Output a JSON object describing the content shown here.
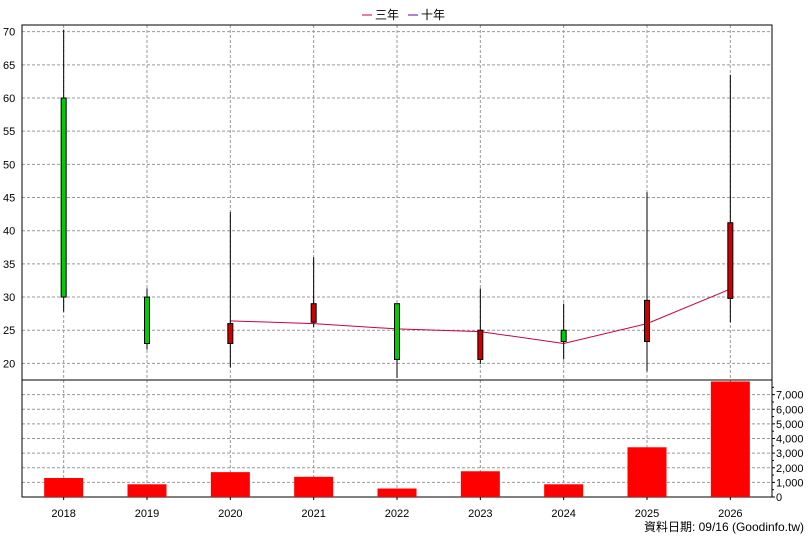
{
  "legend": {
    "items": [
      {
        "label": "三年",
        "color": "#cc0044"
      },
      {
        "label": "十年",
        "color": "#660099"
      }
    ]
  },
  "footer": {
    "source": "資料日期: 09/16 (Goodinfo.tw)"
  },
  "chart_data": [
    {
      "type": "candlestick",
      "categories": [
        "2018",
        "2019",
        "2020",
        "2021",
        "2022",
        "2023",
        "2024",
        "2025",
        "2026"
      ],
      "ylim": [
        17.5,
        71
      ],
      "yticks": [
        20,
        25,
        30,
        35,
        40,
        45,
        50,
        55,
        60,
        65,
        70
      ],
      "grid": true,
      "candles": [
        {
          "open": 30.0,
          "close": 60.0,
          "high": 70.3,
          "low": 27.8,
          "color": "#00cc00"
        },
        {
          "open": 23.0,
          "close": 30.0,
          "high": 31.3,
          "low": 22.1,
          "color": "#00cc00"
        },
        {
          "open": 26.0,
          "close": 23.0,
          "high": 42.8,
          "low": 19.4,
          "color": "#cc0000"
        },
        {
          "open": 29.0,
          "close": 26.2,
          "high": 36.0,
          "low": 25.5,
          "color": "#cc0000"
        },
        {
          "open": 20.6,
          "close": 29.0,
          "high": 29.0,
          "low": 17.8,
          "color": "#00cc00"
        },
        {
          "open": 25.0,
          "close": 20.6,
          "high": 31.3,
          "low": 19.9,
          "color": "#cc0000"
        },
        {
          "open": 23.3,
          "close": 25.0,
          "high": 29.0,
          "low": 20.6,
          "color": "#00cc00"
        },
        {
          "open": 29.5,
          "close": 23.3,
          "high": 45.8,
          "low": 18.8,
          "color": "#cc0000"
        },
        {
          "open": 41.2,
          "close": 29.8,
          "high": 63.5,
          "low": 26.2,
          "color": "#cc0000"
        }
      ],
      "series": [
        {
          "name": "三年",
          "color": "#cc0044",
          "values": [
            null,
            null,
            26.4,
            26.0,
            25.2,
            24.8,
            23.0,
            26.0,
            31.2
          ]
        }
      ]
    },
    {
      "type": "bar",
      "categories": [
        "2018",
        "2019",
        "2020",
        "2021",
        "2022",
        "2023",
        "2024",
        "2025",
        "2026"
      ],
      "values": [
        1300,
        870,
        1700,
        1380,
        580,
        1760,
        870,
        3400,
        7900
      ],
      "ylim": [
        0,
        8000
      ],
      "yticks": [
        0,
        1000,
        2000,
        3000,
        4000,
        5000,
        6000,
        7000
      ],
      "ytick_labels": [
        "0",
        "1,000",
        "2,000",
        "3,000",
        "4,000",
        "5,000",
        "6,000",
        "7,000"
      ],
      "color": "#ff0000",
      "grid": true
    }
  ]
}
